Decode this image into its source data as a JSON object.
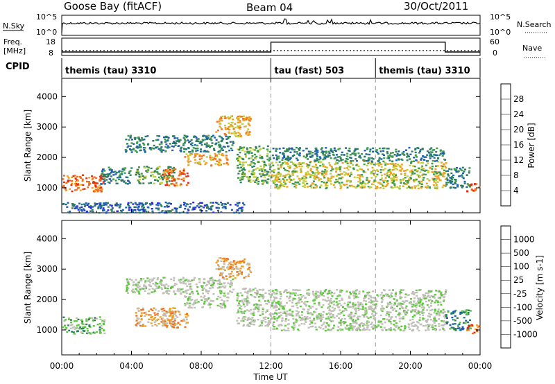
{
  "header": {
    "station": "Goose Bay (fitACF)",
    "beam": "Beam 04",
    "date": "30/Oct/2011"
  },
  "strip": {
    "nsky_label": "N.Sky",
    "nsearch_label": "N.Search",
    "nsky_ticks": [
      "10^5",
      "10^0"
    ],
    "nsearch_ticks": [
      "10^5",
      "10^0"
    ],
    "freq_label_1": "Freq.",
    "freq_label_2": "[MHz]",
    "freq_ticks": [
      "18",
      "8"
    ],
    "nave_label": "Nave",
    "nave_ticks": [
      "60",
      "0"
    ],
    "cpid_label": "CPID",
    "cpid_segments": [
      {
        "name": "themis (tau) 3310",
        "start_hour": 0,
        "end_hour": 12
      },
      {
        "name": "tau (fast) 503",
        "start_hour": 12,
        "end_hour": 18
      },
      {
        "name": "themis (tau) 3310",
        "start_hour": 18,
        "end_hour": 24
      }
    ],
    "nave_levels": [
      {
        "start_hour": 0,
        "end_hour": 12,
        "value": 12
      },
      {
        "start_hour": 12,
        "end_hour": 22,
        "value": 46
      },
      {
        "start_hour": 22,
        "end_hour": 24,
        "value": 12
      }
    ]
  },
  "chart_data": [
    {
      "type": "heatmap",
      "name": "power",
      "ylabel": "Slant Range [km]",
      "yticks": [
        1000,
        2000,
        3000,
        4000
      ],
      "ylim": [
        180,
        4600
      ],
      "xticks": [
        "00:00",
        "04:00",
        "08:00",
        "12:00",
        "16:00",
        "20:00",
        "00:00"
      ],
      "xlim_hours": [
        0,
        24
      ],
      "colorbar": {
        "label": "Power [dB]",
        "ticks": [
          "4",
          "8",
          "12",
          "16",
          "20",
          "24",
          "28"
        ],
        "colors": [
          "#2a2ae0",
          "#1f5fb0",
          "#2e7d60",
          "#3f9a4a",
          "#c2cf3a",
          "#f0a020",
          "#f07020",
          "#e52a10"
        ]
      },
      "regions": [
        {
          "t0": 0.0,
          "t1": 2.4,
          "r0": 900,
          "r1": 1450,
          "level": 6
        },
        {
          "t0": 2.2,
          "t1": 4.0,
          "r0": 1150,
          "r1": 1700,
          "level": 2
        },
        {
          "t0": 4.2,
          "t1": 6.5,
          "r0": 1150,
          "r1": 1750,
          "level": 3
        },
        {
          "t0": 5.7,
          "t1": 7.2,
          "r0": 1100,
          "r1": 1650,
          "level": 6
        },
        {
          "t0": 3.6,
          "t1": 9.8,
          "r0": 2200,
          "r1": 2750,
          "level": 2
        },
        {
          "t0": 7.0,
          "t1": 9.5,
          "r0": 1750,
          "r1": 2150,
          "level": 5
        },
        {
          "t0": 8.8,
          "t1": 10.8,
          "r0": 2700,
          "r1": 3400,
          "level": 5
        },
        {
          "t0": 10.0,
          "t1": 12.0,
          "r0": 1150,
          "r1": 2400,
          "level": 3
        },
        {
          "t0": 12.0,
          "t1": 22.0,
          "r0": 1000,
          "r1": 1900,
          "level": 4
        },
        {
          "t0": 12.0,
          "t1": 22.0,
          "r0": 1900,
          "r1": 2350,
          "level": 2
        },
        {
          "t0": 22.0,
          "t1": 23.4,
          "r0": 1000,
          "r1": 1700,
          "level": 2
        },
        {
          "t0": 23.2,
          "t1": 23.9,
          "r0": 900,
          "r1": 1200,
          "level": 7
        },
        {
          "t0": 0.0,
          "t1": 10.5,
          "r0": 200,
          "r1": 550,
          "level": 1
        }
      ]
    },
    {
      "type": "heatmap",
      "name": "velocity",
      "ylabel": "Slant Range [km]",
      "yticks": [
        1000,
        2000,
        3000,
        4000
      ],
      "ylim": [
        180,
        4600
      ],
      "xticks": [
        "00:00",
        "04:00",
        "08:00",
        "12:00",
        "16:00",
        "20:00",
        "00:00"
      ],
      "xlim_hours": [
        0,
        24
      ],
      "xlabel": "Time UT",
      "colorbar": {
        "label": "Velocity [m s-1]",
        "ticks": [
          "1000",
          "500",
          "100",
          "25",
          "-25",
          "-100",
          "-500",
          "-1000"
        ],
        "colors": [
          "#2a2ae0",
          "#1f5fb0",
          "#2e7d60",
          "#5cc83a",
          "#c0c0b8",
          "#c0c0b8",
          "#f0a020",
          "#f07020",
          "#e52a10"
        ]
      },
      "regions": [
        {
          "t0": 0.0,
          "t1": 2.4,
          "r0": 900,
          "r1": 1450,
          "level": 3
        },
        {
          "t0": 4.2,
          "t1": 6.5,
          "r0": 1150,
          "r1": 1750,
          "level": 6
        },
        {
          "t0": 5.7,
          "t1": 7.2,
          "r0": 1100,
          "r1": 1650,
          "level": 6
        },
        {
          "t0": 3.6,
          "t1": 9.8,
          "r0": 2200,
          "r1": 2750,
          "level": 4
        },
        {
          "t0": 7.0,
          "t1": 9.5,
          "r0": 1750,
          "r1": 2150,
          "level": 4
        },
        {
          "t0": 8.8,
          "t1": 10.8,
          "r0": 2700,
          "r1": 3400,
          "level": 6
        },
        {
          "t0": 10.0,
          "t1": 12.0,
          "r0": 1150,
          "r1": 2400,
          "level": 4
        },
        {
          "t0": 12.0,
          "t1": 22.0,
          "r0": 1000,
          "r1": 2350,
          "level": 4
        },
        {
          "t0": 22.0,
          "t1": 23.4,
          "r0": 1000,
          "r1": 1700,
          "level": 2
        },
        {
          "t0": 23.2,
          "t1": 23.9,
          "r0": 900,
          "r1": 1200,
          "level": 7
        }
      ]
    }
  ]
}
